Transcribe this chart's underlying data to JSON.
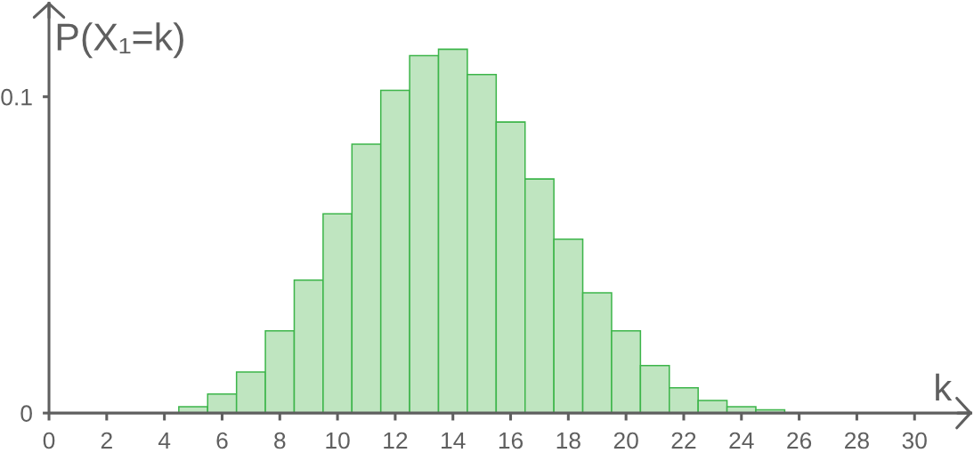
{
  "chart_data": {
    "type": "bar",
    "xlabel": "k",
    "ylabel": "P(X₁=k)",
    "x": [
      5,
      6,
      7,
      8,
      9,
      10,
      11,
      12,
      13,
      14,
      15,
      16,
      17,
      18,
      19,
      20,
      21,
      22,
      23,
      24,
      25
    ],
    "values": [
      0.002,
      0.006,
      0.013,
      0.026,
      0.042,
      0.063,
      0.085,
      0.102,
      0.113,
      0.115,
      0.107,
      0.092,
      0.074,
      0.055,
      0.038,
      0.026,
      0.015,
      0.008,
      0.004,
      0.002,
      0.001
    ],
    "color": "#bfe5c0",
    "xlim": [
      0,
      32
    ],
    "ylim": [
      0,
      0.13
    ],
    "xticks": [
      0,
      2,
      4,
      6,
      8,
      10,
      12,
      14,
      16,
      18,
      20,
      22,
      24,
      26,
      28,
      30
    ],
    "yticks": [
      0,
      0.1
    ],
    "grid": false
  }
}
